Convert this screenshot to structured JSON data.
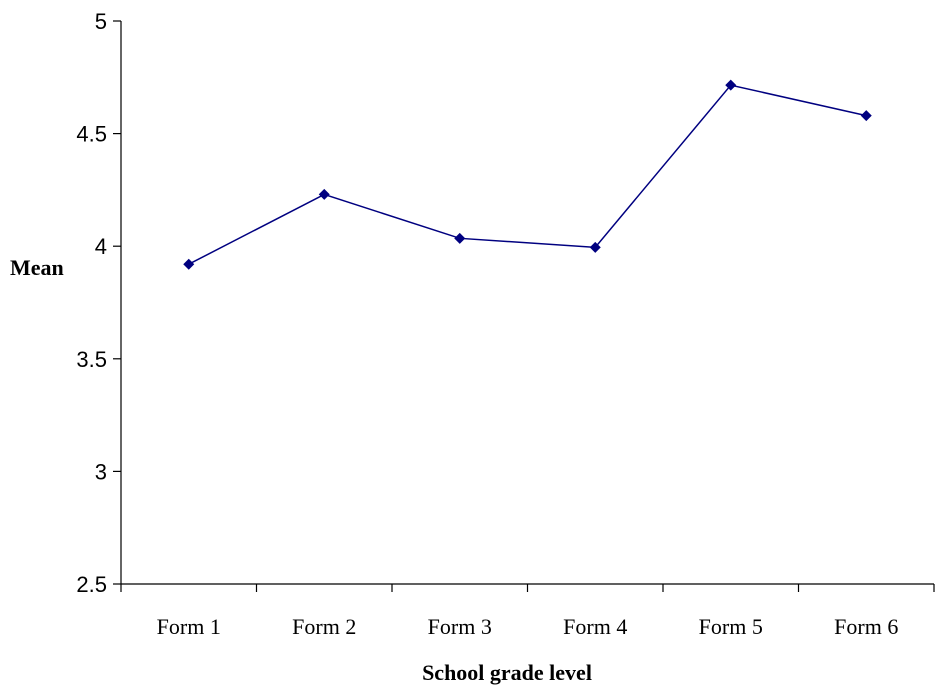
{
  "chart_data": {
    "type": "line",
    "categories": [
      "Form 1",
      "Form 2",
      "Form 3",
      "Form 4",
      "Form 5",
      "Form 6"
    ],
    "series": [
      {
        "values": [
          3.92,
          4.23,
          4.035,
          3.995,
          4.715,
          4.58
        ]
      }
    ],
    "xlabel": "School grade level",
    "ylabel": "Mean",
    "ylim": [
      2.5,
      5
    ],
    "yticks": [
      "2.5",
      "3",
      "3.5",
      "4",
      "4.5",
      "5"
    ],
    "ytick_values": [
      2.5,
      3,
      3.5,
      4,
      4.5,
      5
    ],
    "grid": false,
    "legend": false,
    "colors": {
      "series": "#000080",
      "axis": "#000000"
    }
  }
}
